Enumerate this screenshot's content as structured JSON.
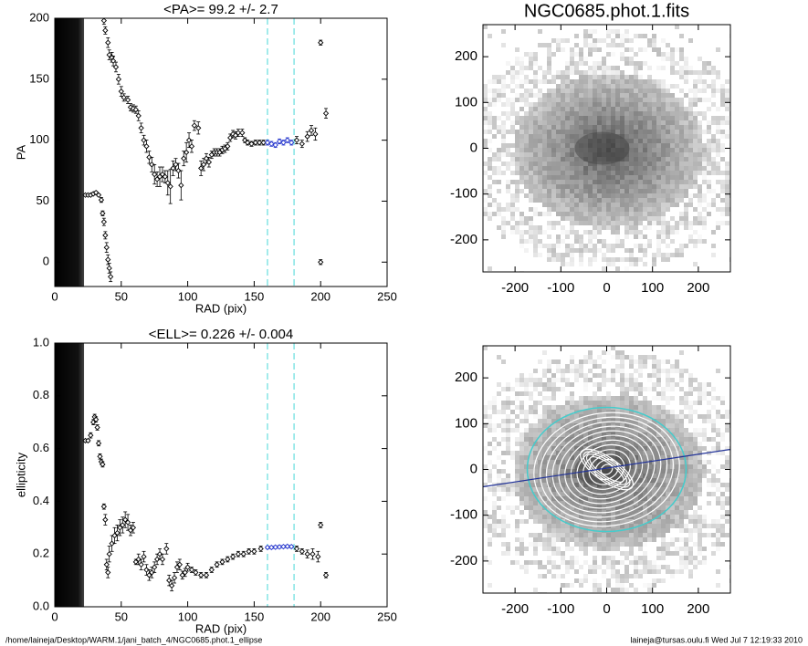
{
  "chart_data": [
    {
      "type": "scatter",
      "title": "<PA>=  99.2 +/-   2.7",
      "xlabel": "RAD (pix)",
      "ylabel": "PA",
      "xlim": [
        0,
        250
      ],
      "ylim": [
        -20,
        200
      ],
      "xticks": [
        0,
        50,
        100,
        150,
        200,
        250
      ],
      "yticks": [
        0,
        50,
        100,
        150,
        200
      ],
      "shaded_band": [
        0,
        22
      ],
      "vlines": [
        160,
        180
      ],
      "vline_color": "#66dddd",
      "series": [
        {
          "color": "#000000",
          "x": [
            23,
            25,
            27,
            29,
            31,
            33,
            35,
            36,
            37,
            38,
            39,
            40,
            41,
            42,
            37,
            38,
            40,
            41,
            43,
            44,
            46,
            48,
            50,
            52,
            55,
            57,
            59,
            61,
            63,
            65,
            67,
            69,
            71,
            73,
            75,
            77,
            79,
            81,
            83,
            85,
            87,
            89,
            91,
            93,
            95,
            97,
            99,
            101,
            103,
            105,
            108,
            110,
            112,
            114,
            116,
            118,
            120,
            122,
            124,
            126,
            128,
            130,
            132,
            134,
            136,
            138,
            141,
            143,
            145,
            148,
            151,
            154,
            157,
            182,
            186,
            190,
            193,
            196,
            200,
            200,
            204
          ],
          "values": [
            55,
            55,
            55,
            56,
            57,
            55,
            51,
            40,
            33,
            22,
            12,
            2,
            -5,
            -12,
            198,
            190,
            180,
            170,
            168,
            165,
            160,
            150,
            140,
            135,
            133,
            127,
            126,
            125,
            120,
            110,
            100,
            95,
            86,
            80,
            72,
            68,
            70,
            72,
            70,
            65,
            62,
            77,
            80,
            75,
            63,
            85,
            90,
            100,
            95,
            112,
            110,
            77,
            80,
            85,
            82,
            88,
            90,
            90,
            90,
            92,
            93,
            95,
            102,
            105,
            104,
            106,
            106,
            100,
            98,
            97,
            98,
            98,
            98,
            100,
            97,
            103,
            108,
            105,
            180,
            0,
            122
          ],
          "errors": [
            1,
            1,
            1,
            1,
            1,
            1,
            2,
            2,
            3,
            3,
            4,
            4,
            4,
            4,
            3,
            3,
            4,
            4,
            4,
            4,
            4,
            4,
            4,
            3,
            3,
            3,
            3,
            3,
            4,
            4,
            4,
            5,
            5,
            6,
            8,
            6,
            8,
            6,
            5,
            10,
            14,
            6,
            5,
            6,
            12,
            6,
            8,
            6,
            5,
            4,
            5,
            6,
            5,
            4,
            4,
            3,
            3,
            3,
            3,
            3,
            3,
            3,
            3,
            3,
            3,
            3,
            3,
            2,
            2,
            2,
            2,
            2,
            2,
            3,
            3,
            4,
            4,
            5,
            2,
            2,
            4
          ]
        },
        {
          "color": "#2233cc",
          "x": [
            160,
            163,
            166,
            169,
            172,
            175,
            178
          ],
          "values": [
            98,
            97,
            96,
            99,
            98,
            100,
            98
          ],
          "errors": [
            2,
            2,
            2,
            2,
            2,
            2,
            2
          ]
        }
      ]
    },
    {
      "type": "image",
      "title": "NGC0685.phot.1.fits",
      "xlim": [
        -270,
        270
      ],
      "ylim": [
        -270,
        270
      ],
      "xticks": [
        -200,
        -100,
        0,
        100,
        200
      ],
      "yticks": [
        -200,
        -100,
        0,
        100,
        200
      ]
    },
    {
      "type": "scatter",
      "title": "<ELL>= 0.226 +/-  0.004",
      "xlabel": "RAD (pix)",
      "ylabel": "ellipticity",
      "xlim": [
        0,
        250
      ],
      "ylim": [
        0,
        1
      ],
      "xticks": [
        0,
        50,
        100,
        150,
        200,
        250
      ],
      "yticks": [
        {
          "value": 0,
          "label": "0.0"
        },
        0.2,
        0.4,
        0.6,
        0.8,
        {
          "value": 1,
          "label": "1.0"
        }
      ],
      "shaded_band": [
        0,
        22
      ],
      "vlines": [
        160,
        180
      ],
      "vline_color": "#66dddd",
      "series": [
        {
          "color": "#000000",
          "x": [
            23,
            25,
            27,
            29,
            30,
            31,
            32,
            33,
            34,
            35,
            36,
            37,
            38,
            39,
            40,
            41,
            43,
            45,
            47,
            49,
            51,
            53,
            55,
            57,
            59,
            61,
            63,
            65,
            67,
            69,
            71,
            73,
            75,
            77,
            79,
            81,
            84,
            86,
            88,
            90,
            92,
            94,
            96,
            98,
            100,
            103,
            106,
            110,
            114,
            118,
            122,
            126,
            130,
            134,
            138,
            142,
            146,
            150,
            155,
            182,
            186,
            190,
            194,
            198,
            200,
            204
          ],
          "values": [
            0.63,
            0.63,
            0.65,
            0.7,
            0.72,
            0.71,
            0.68,
            0.62,
            0.57,
            0.55,
            0.54,
            0.38,
            0.33,
            0.16,
            0.13,
            0.2,
            0.24,
            0.27,
            0.28,
            0.3,
            0.31,
            0.33,
            0.32,
            0.29,
            0.3,
            0.17,
            0.18,
            0.16,
            0.19,
            0.14,
            0.12,
            0.13,
            0.15,
            0.18,
            0.2,
            0.18,
            0.22,
            0.1,
            0.08,
            0.11,
            0.15,
            0.16,
            0.12,
            0.13,
            0.15,
            0.14,
            0.13,
            0.12,
            0.12,
            0.14,
            0.16,
            0.17,
            0.18,
            0.19,
            0.2,
            0.2,
            0.21,
            0.21,
            0.22,
            0.22,
            0.21,
            0.2,
            0.2,
            0.19,
            0.31,
            0.12
          ],
          "errors": [
            0.005,
            0.005,
            0.01,
            0.01,
            0.01,
            0.01,
            0.01,
            0.01,
            0.01,
            0.01,
            0.01,
            0.01,
            0.02,
            0.02,
            0.02,
            0.03,
            0.03,
            0.03,
            0.03,
            0.03,
            0.03,
            0.03,
            0.03,
            0.02,
            0.02,
            0.01,
            0.02,
            0.02,
            0.02,
            0.02,
            0.02,
            0.02,
            0.02,
            0.02,
            0.02,
            0.02,
            0.02,
            0.02,
            0.02,
            0.02,
            0.02,
            0.02,
            0.015,
            0.015,
            0.015,
            0.01,
            0.01,
            0.01,
            0.01,
            0.01,
            0.01,
            0.01,
            0.01,
            0.01,
            0.01,
            0.01,
            0.01,
            0.01,
            0.01,
            0.01,
            0.01,
            0.015,
            0.02,
            0.02,
            0.01,
            0.01
          ]
        },
        {
          "color": "#2233cc",
          "x": [
            160,
            163,
            166,
            169,
            172,
            175,
            178
          ],
          "values": [
            0.225,
            0.225,
            0.226,
            0.227,
            0.228,
            0.229,
            0.228
          ],
          "errors": [
            0.005,
            0.005,
            0.005,
            0.005,
            0.005,
            0.005,
            0.005
          ]
        }
      ]
    },
    {
      "type": "image",
      "xlim": [
        -270,
        270
      ],
      "ylim": [
        -270,
        270
      ],
      "xticks": [
        -200,
        -100,
        0,
        100,
        200
      ],
      "yticks": [
        -200,
        -100,
        0,
        100,
        200
      ],
      "overlay": true
    }
  ],
  "footer": {
    "left": "/home/laineja/Desktop/WARM.1/jani_batch_4/NGC0685.phot.1_ellipse",
    "right": "laineja@tursas.oulu.fi  Wed Jul  7 12:19:33 2010"
  }
}
